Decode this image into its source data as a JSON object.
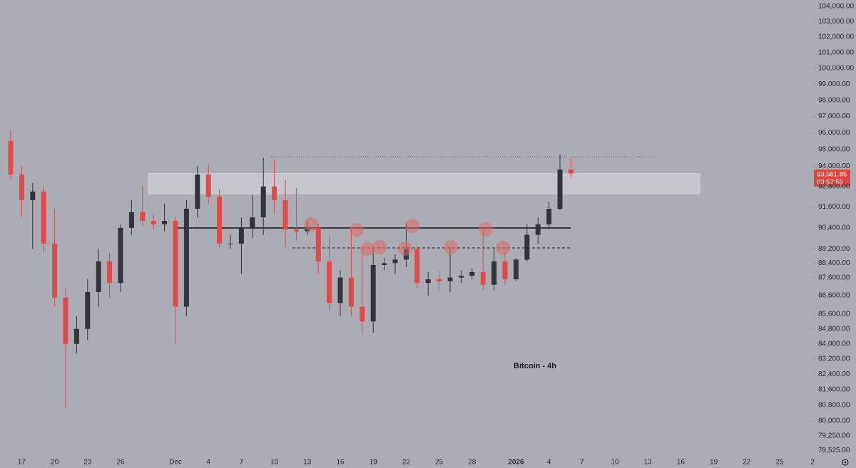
{
  "chart_data": {
    "type": "candlestick",
    "title": "Bitcoin - 4h",
    "last_price_label": "93,561.85",
    "countdown_label": "03:52:55",
    "log_scale": true,
    "grid": false,
    "up_color": "#32333b",
    "down_color": "#e2494b",
    "categories": [
      null,
      "17",
      null,
      null,
      "20",
      null,
      null,
      "23",
      null,
      null,
      "26",
      null,
      null,
      null,
      null,
      "Dec",
      null,
      null,
      "4",
      null,
      null,
      "7",
      null,
      null,
      "10",
      null,
      null,
      "13",
      null,
      null,
      "16",
      null,
      null,
      "19",
      null,
      null,
      "22",
      null,
      null,
      "25",
      null,
      null,
      "28",
      null,
      null,
      null,
      "2026",
      null,
      null,
      "4",
      null,
      null,
      "7",
      null,
      null,
      "10",
      null,
      null,
      "13",
      null,
      null,
      "16",
      null,
      null,
      "19",
      null,
      null,
      "22",
      null,
      null,
      "25",
      null,
      null,
      "2"
    ],
    "open": [
      95500,
      93500,
      92000,
      92500,
      89500,
      86500,
      84000,
      84800,
      86800,
      88500,
      87300,
      90400,
      91300,
      90800,
      90600,
      90800,
      86000,
      91500,
      93500,
      92200,
      89500,
      89500,
      90400,
      91000,
      92800,
      92000,
      90300,
      90200,
      90400,
      88500,
      86200,
      87600,
      86000,
      85200,
      88300,
      88400,
      88600,
      89200,
      87300,
      87500,
      87400,
      87600,
      87700,
      87900,
      87200,
      88500,
      87500,
      88600,
      90000,
      90600,
      91500,
      93800,
      null,
      null,
      null,
      null,
      null,
      null,
      null,
      null,
      null,
      null,
      null,
      null,
      null,
      null,
      null,
      null,
      null,
      null,
      null,
      null,
      null,
      null
    ],
    "high": [
      96200,
      94000,
      93000,
      92800,
      91500,
      87000,
      85500,
      87500,
      89200,
      89000,
      90600,
      92000,
      92800,
      91200,
      91800,
      91000,
      92000,
      94000,
      94100,
      92600,
      90000,
      91000,
      92300,
      94500,
      94400,
      93200,
      92700,
      90800,
      90600,
      89900,
      88000,
      90400,
      89200,
      89300,
      88700,
      88900,
      90600,
      89400,
      87900,
      88000,
      89300,
      88000,
      88100,
      90400,
      89200,
      89000,
      88700,
      90600,
      91000,
      91900,
      94700,
      94500,
      null,
      null,
      null,
      null,
      null,
      null,
      null,
      null,
      null,
      null,
      null,
      null,
      null,
      null,
      null,
      null,
      null,
      null,
      null,
      null,
      null,
      null
    ],
    "low": [
      93200,
      91000,
      89200,
      89000,
      86000,
      80600,
      83500,
      84200,
      86000,
      86500,
      86800,
      90000,
      90500,
      90300,
      90200,
      84000,
      85500,
      91000,
      91800,
      89300,
      89200,
      87800,
      89800,
      90000,
      91200,
      89300,
      89700,
      90000,
      87800,
      85800,
      85500,
      85500,
      84500,
      84600,
      88000,
      87800,
      88200,
      87000,
      86600,
      86800,
      86800,
      87300,
      87500,
      86900,
      86900,
      87200,
      87400,
      88500,
      89500,
      90300,
      91400,
      93300,
      null,
      null,
      null,
      null,
      null,
      null,
      null,
      null,
      null,
      null,
      null,
      null,
      null,
      null,
      null,
      null,
      null,
      null,
      null,
      null,
      null,
      null
    ],
    "close": [
      93500,
      92000,
      92500,
      89500,
      86500,
      84000,
      84800,
      86800,
      88500,
      87300,
      90400,
      91300,
      90800,
      90600,
      90800,
      86000,
      91500,
      93500,
      92200,
      89500,
      89500,
      90400,
      91000,
      92800,
      92000,
      90300,
      90200,
      90400,
      88500,
      86200,
      87600,
      86000,
      85200,
      88300,
      88400,
      88600,
      89200,
      87300,
      87500,
      87400,
      87600,
      87700,
      87900,
      87200,
      88500,
      87500,
      88600,
      90000,
      90600,
      91500,
      93800,
      93561.85,
      null,
      null,
      null,
      null,
      null,
      null,
      null,
      null,
      null,
      null,
      null,
      null,
      null,
      null,
      null,
      null,
      null,
      null,
      null,
      null,
      null,
      null
    ],
    "ylim": [
      78250,
      104420
    ],
    "yticks": [
      {
        "value": 104000,
        "label": "104,000.00"
      },
      {
        "value": 103000,
        "label": "103,000.00"
      },
      {
        "value": 102000,
        "label": "102,000.00"
      },
      {
        "value": 101000,
        "label": "101,000.00"
      },
      {
        "value": 100000,
        "label": "100,000.00"
      },
      {
        "value": 99000,
        "label": "99,000.00"
      },
      {
        "value": 98000,
        "label": "98,000.00"
      },
      {
        "value": 97000,
        "label": "97,000.00"
      },
      {
        "value": 96000,
        "label": "96,000.00"
      },
      {
        "value": 95000,
        "label": "95,000.00"
      },
      {
        "value": 94000,
        "label": "94,000.00"
      },
      {
        "value": 92800,
        "label": "92,800.00"
      },
      {
        "value": 91600,
        "label": "91,600.00"
      },
      {
        "value": 90400,
        "label": "90,400.00"
      },
      {
        "value": 89200,
        "label": "89,200.00"
      },
      {
        "value": 88400,
        "label": "88,400.00"
      },
      {
        "value": 87600,
        "label": "87,600.00"
      },
      {
        "value": 86600,
        "label": "86,600.00"
      },
      {
        "value": 85600,
        "label": "85,600.00"
      },
      {
        "value": 84800,
        "label": "84,800.00"
      },
      {
        "value": 84000,
        "label": "84,000.00"
      },
      {
        "value": 83200,
        "label": "83,200.00"
      },
      {
        "value": 82400,
        "label": "82,400.00"
      },
      {
        "value": 81600,
        "label": "81,600.00"
      },
      {
        "value": 80800,
        "label": "80,800.00"
      },
      {
        "value": 80000,
        "label": "80,000.00"
      },
      {
        "value": 79250,
        "label": "79,250.00"
      },
      {
        "value": 78525,
        "label": "78,525.00"
      }
    ]
  }
}
